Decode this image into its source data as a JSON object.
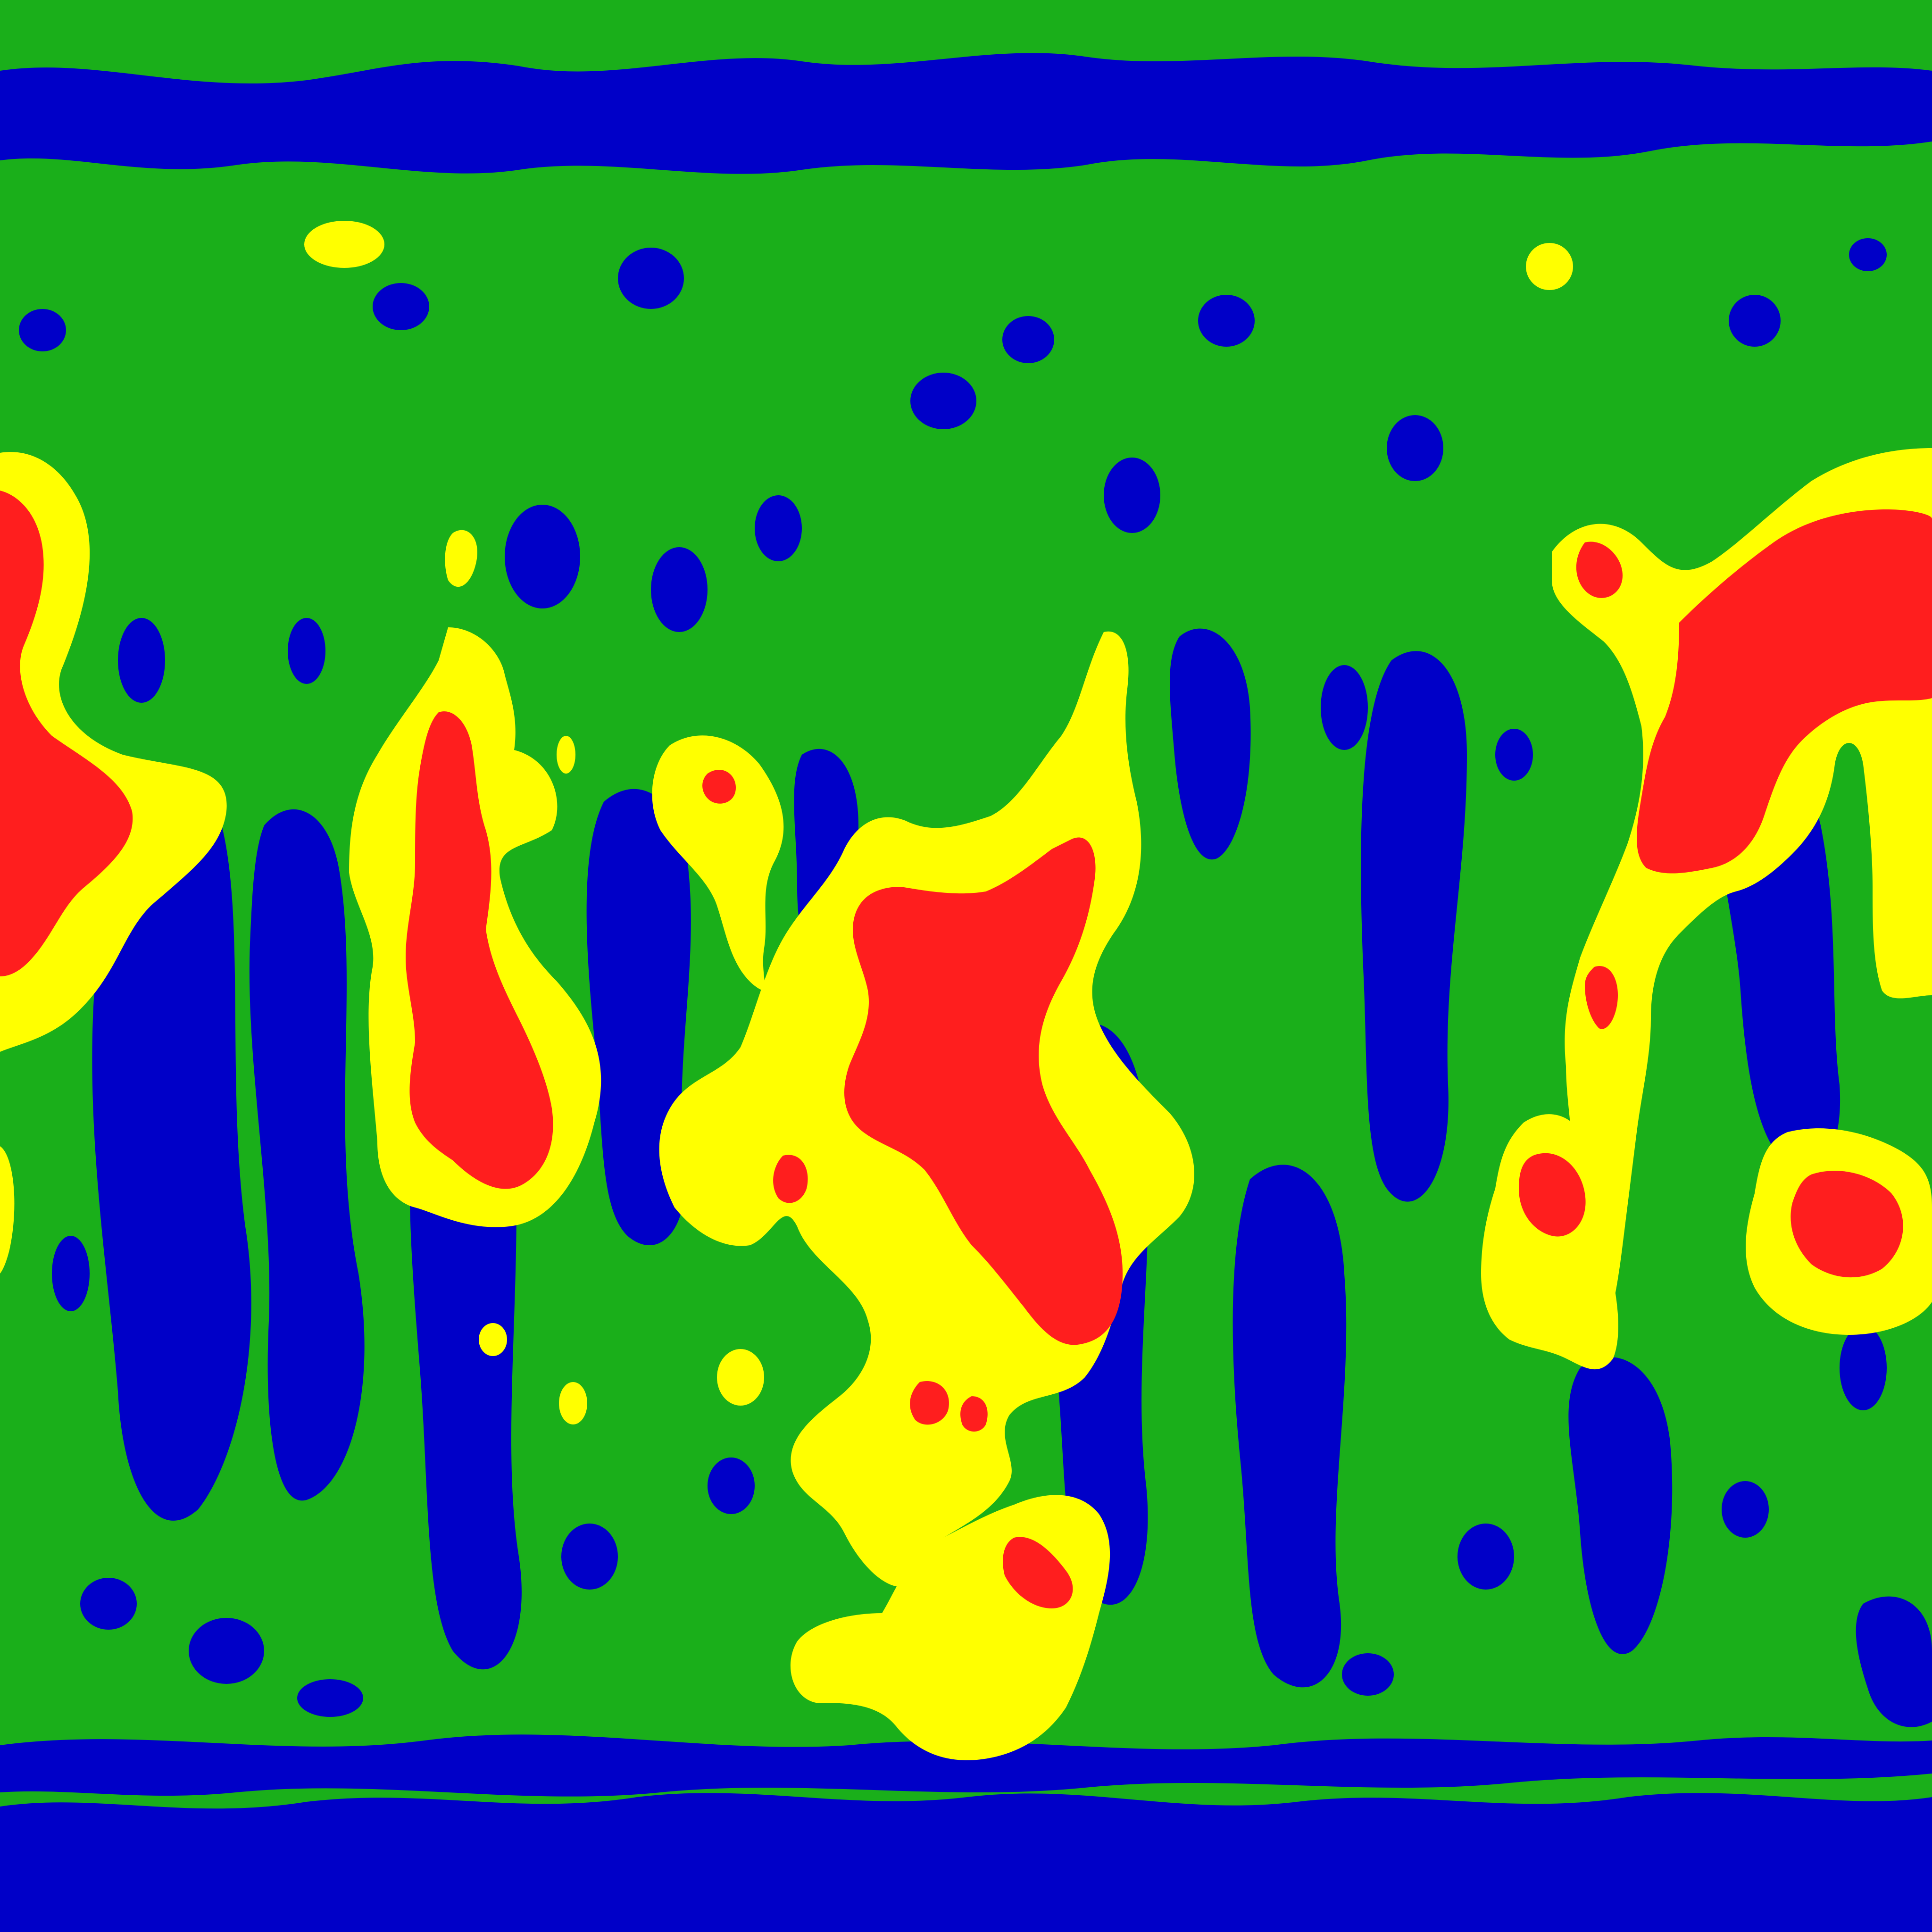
{
  "map": {
    "projection": "equirectangular",
    "palette": {
      "background": "#1aaf1a",
      "low": "#0000c8",
      "mid": "#1aaf1a",
      "high": "#ffff00",
      "peak": "#ff1e1e"
    },
    "classes": [
      "low",
      "mid",
      "high",
      "peak"
    ]
  }
}
